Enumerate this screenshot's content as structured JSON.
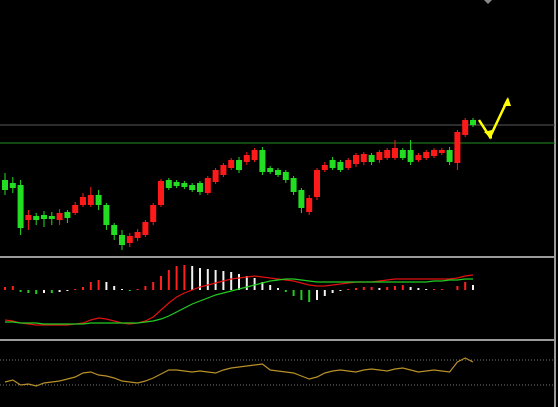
{
  "chart_data": [
    {
      "type": "candlestick",
      "open": [
        75,
        72,
        70,
        35,
        39,
        40,
        39,
        35,
        43,
        42,
        50,
        50,
        60,
        50,
        30,
        20,
        12,
        17,
        20,
        33,
        50,
        75,
        73,
        72,
        70,
        72,
        62,
        73,
        80,
        87,
        95,
        93,
        95,
        105,
        87,
        85,
        83,
        77,
        65,
        43,
        58,
        85,
        95,
        93,
        87,
        91,
        93,
        100,
        95,
        97,
        97,
        105,
        105,
        95,
        97,
        99,
        102,
        105,
        92,
        120,
        135
      ],
      "close": [
        65,
        67,
        27,
        40,
        35,
        36,
        36,
        42,
        37,
        50,
        58,
        60,
        50,
        30,
        20,
        10,
        19,
        23,
        33,
        50,
        74,
        67,
        69,
        68,
        65,
        63,
        77,
        85,
        90,
        95,
        85,
        100,
        105,
        83,
        83,
        80,
        75,
        63,
        47,
        57,
        85,
        90,
        87,
        85,
        95,
        100,
        101,
        93,
        103,
        105,
        107,
        97,
        93,
        100,
        103,
        105,
        105,
        93,
        123,
        135,
        130
      ],
      "high": [
        82,
        78,
        75,
        45,
        42,
        44,
        43,
        46,
        45,
        53,
        62,
        68,
        65,
        52,
        32,
        25,
        22,
        26,
        35,
        52,
        76,
        77,
        75,
        74,
        72,
        74,
        79,
        87,
        92,
        97,
        98,
        103,
        107,
        108,
        89,
        87,
        85,
        79,
        67,
        60,
        87,
        93,
        98,
        95,
        97,
        102,
        103,
        102,
        105,
        107,
        115,
        107,
        115,
        102,
        105,
        107,
        107,
        108,
        125,
        137,
        137
      ],
      "low": [
        60,
        62,
        20,
        25,
        30,
        28,
        30,
        30,
        32,
        40,
        48,
        48,
        45,
        25,
        15,
        5,
        8,
        14,
        18,
        30,
        48,
        65,
        67,
        66,
        63,
        60,
        60,
        71,
        78,
        85,
        82,
        90,
        93,
        80,
        81,
        78,
        72,
        60,
        42,
        40,
        55,
        83,
        85,
        83,
        85,
        88,
        90,
        90,
        92,
        95,
        95,
        95,
        90,
        93,
        95,
        97,
        100,
        90,
        85,
        118,
        128
      ],
      "up_color": "#ff1a1a",
      "down_color": "#22dd22",
      "levels": [
        {
          "value": 130,
          "color": "#5a5a5a"
        },
        {
          "value": 112,
          "color": "#1f8f1f"
        }
      ],
      "ylim": [
        0,
        255
      ]
    },
    {
      "type": "macd",
      "histogram": [
        3,
        4,
        -2,
        -3,
        -4,
        -3,
        -3,
        -2,
        -1,
        1,
        3,
        8,
        10,
        8,
        4,
        1,
        -1,
        1,
        4,
        8,
        14,
        20,
        24,
        25,
        24,
        22,
        21,
        20,
        19,
        18,
        16,
        14,
        12,
        8,
        5,
        2,
        -2,
        -6,
        -10,
        -12,
        -10,
        -6,
        -3,
        -1,
        1,
        2,
        3,
        3,
        2,
        3,
        4,
        5,
        3,
        2,
        1,
        1,
        1,
        0,
        4,
        8,
        5
      ],
      "series": [
        {
          "color": "#e01010",
          "values": [
            -30,
            -31,
            -33,
            -34,
            -35,
            -35,
            -35,
            -35,
            -35,
            -34,
            -33,
            -30,
            -28,
            -29,
            -31,
            -33,
            -34,
            -33,
            -31,
            -27,
            -20,
            -13,
            -7,
            -3,
            0,
            3,
            5,
            7,
            9,
            11,
            12,
            13,
            14,
            13,
            12,
            11,
            10,
            9,
            7,
            5,
            4,
            4,
            5,
            6,
            7,
            8,
            8,
            8,
            9,
            10,
            11,
            11,
            11,
            11,
            11,
            11,
            11,
            11,
            12,
            14,
            15
          ]
        },
        {
          "color": "#22cc22",
          "values": [
            -32,
            -32,
            -33,
            -33,
            -33,
            -34,
            -34,
            -34,
            -34,
            -34,
            -34,
            -33,
            -33,
            -33,
            -33,
            -33,
            -33,
            -33,
            -32,
            -31,
            -29,
            -26,
            -22,
            -18,
            -14,
            -11,
            -8,
            -5,
            -3,
            -1,
            1,
            3,
            5,
            7,
            9,
            10,
            11,
            11,
            10,
            9,
            8,
            8,
            8,
            8,
            8,
            8,
            8,
            8,
            8,
            8,
            8,
            8,
            8,
            8,
            8,
            9,
            9,
            10,
            10,
            11,
            11
          ]
        }
      ],
      "up_color": "#ff2020",
      "fade_color": "#f2f2f2",
      "down_color": "#22cc22",
      "ylim": [
        -48,
        32
      ]
    },
    {
      "type": "line",
      "values": [
        18,
        20,
        15,
        16,
        14,
        17,
        18,
        19,
        21,
        23,
        27,
        28,
        25,
        24,
        22,
        19,
        18,
        17,
        19,
        22,
        26,
        30,
        30,
        29,
        28,
        29,
        28,
        27,
        30,
        32,
        33,
        34,
        35,
        36,
        30,
        29,
        28,
        27,
        24,
        21,
        23,
        27,
        29,
        30,
        29,
        28,
        30,
        31,
        30,
        29,
        31,
        32,
        30,
        28,
        29,
        30,
        29,
        28,
        38,
        42,
        38
      ],
      "color": "#b8902a",
      "levels": [
        {
          "value": 40,
          "color": "#777777"
        },
        {
          "value": 15,
          "color": "#777777"
        }
      ],
      "ylim": [
        -5,
        58
      ]
    }
  ]
}
